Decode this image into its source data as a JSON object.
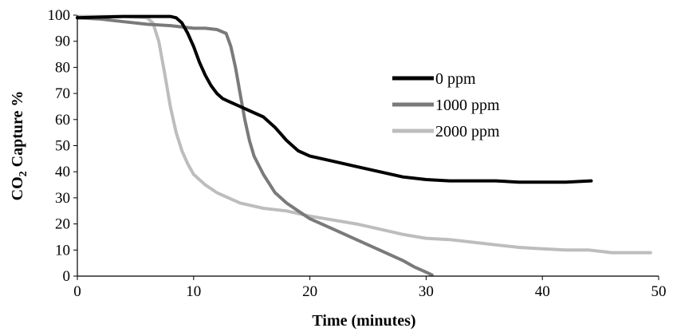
{
  "chart_data": {
    "type": "line",
    "title": "",
    "xlabel": "Time (minutes)",
    "ylabel": {
      "main": "CO",
      "sub": "2",
      "rest": " Capture %"
    },
    "xlim": [
      0,
      50
    ],
    "ylim": [
      0,
      100
    ],
    "xticks": [
      "0",
      "10",
      "20",
      "30",
      "40",
      "50"
    ],
    "yticks": [
      "0",
      "10",
      "20",
      "30",
      "40",
      "50",
      "60",
      "70",
      "80",
      "90",
      "100"
    ],
    "grid": false,
    "legend_position": "right",
    "series": [
      {
        "name": "0 ppm",
        "color": "#000000",
        "points": [
          [
            0,
            99
          ],
          [
            4,
            99.5
          ],
          [
            8,
            99.5
          ],
          [
            8.5,
            99
          ],
          [
            9,
            97
          ],
          [
            9.5,
            93
          ],
          [
            10,
            88
          ],
          [
            10.5,
            82
          ],
          [
            11,
            77
          ],
          [
            11.5,
            73
          ],
          [
            12,
            70
          ],
          [
            12.5,
            68
          ],
          [
            13,
            67
          ],
          [
            14,
            65
          ],
          [
            15,
            63
          ],
          [
            16,
            61
          ],
          [
            17,
            57
          ],
          [
            18,
            52
          ],
          [
            19,
            48
          ],
          [
            20,
            46
          ],
          [
            22,
            44
          ],
          [
            24,
            42
          ],
          [
            26,
            40
          ],
          [
            28,
            38
          ],
          [
            30,
            37
          ],
          [
            32,
            36.5
          ],
          [
            34,
            36.5
          ],
          [
            36,
            36.5
          ],
          [
            38,
            36
          ],
          [
            40,
            36
          ],
          [
            42,
            36
          ],
          [
            44.2,
            36.5
          ]
        ]
      },
      {
        "name": "1000 ppm",
        "color": "#7a7a7a",
        "points": [
          [
            0,
            99
          ],
          [
            2,
            98.5
          ],
          [
            4,
            97.5
          ],
          [
            6,
            96.5
          ],
          [
            8,
            96
          ],
          [
            10,
            95
          ],
          [
            11,
            95
          ],
          [
            12,
            94.5
          ],
          [
            12.8,
            93
          ],
          [
            13.2,
            88
          ],
          [
            13.6,
            80
          ],
          [
            14,
            70
          ],
          [
            14.4,
            60
          ],
          [
            14.8,
            52
          ],
          [
            15.2,
            46
          ],
          [
            16,
            39
          ],
          [
            17,
            32
          ],
          [
            18,
            28
          ],
          [
            19,
            25
          ],
          [
            20,
            22
          ],
          [
            22,
            18
          ],
          [
            24,
            14
          ],
          [
            26,
            10
          ],
          [
            28,
            6
          ],
          [
            29,
            3.5
          ],
          [
            30,
            1.5
          ],
          [
            30.5,
            0.5
          ]
        ]
      },
      {
        "name": "2000 ppm",
        "color": "#bdbdbd",
        "points": [
          [
            0,
            99.5
          ],
          [
            2,
            99.5
          ],
          [
            4,
            99.5
          ],
          [
            6,
            99
          ],
          [
            6.5,
            97
          ],
          [
            7,
            90
          ],
          [
            7.5,
            78
          ],
          [
            8,
            65
          ],
          [
            8.5,
            55
          ],
          [
            9,
            48
          ],
          [
            9.5,
            43
          ],
          [
            10,
            39
          ],
          [
            11,
            35
          ],
          [
            12,
            32
          ],
          [
            13,
            30
          ],
          [
            14,
            28
          ],
          [
            15,
            27
          ],
          [
            16,
            26
          ],
          [
            18,
            25
          ],
          [
            20,
            23
          ],
          [
            22,
            21.5
          ],
          [
            24,
            20
          ],
          [
            26,
            18
          ],
          [
            28,
            16
          ],
          [
            30,
            14.5
          ],
          [
            32,
            14
          ],
          [
            34,
            13
          ],
          [
            36,
            12
          ],
          [
            38,
            11
          ],
          [
            40,
            10.5
          ],
          [
            42,
            10
          ],
          [
            44,
            10
          ],
          [
            46,
            9
          ],
          [
            48,
            9
          ],
          [
            49.3,
            9
          ]
        ]
      }
    ]
  }
}
